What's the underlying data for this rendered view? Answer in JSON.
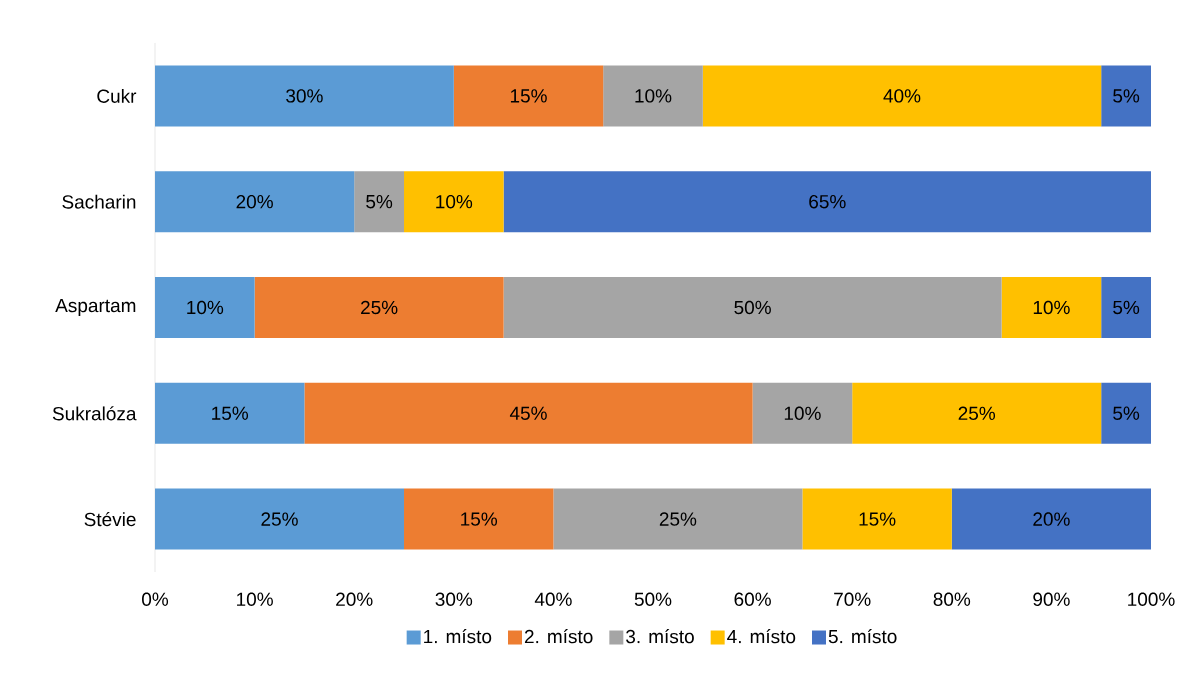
{
  "chart_data": {
    "type": "bar",
    "orientation": "horizontal",
    "stacked": true,
    "categories": [
      "Cukr",
      "Sacharin",
      "Aspartam",
      "Sukralóza",
      "Stévie"
    ],
    "series": [
      {
        "name": "1. místo",
        "color": "#5b9bd5",
        "values": [
          30,
          20,
          10,
          15,
          25
        ],
        "value_labels": [
          "30%",
          "20%",
          "10%",
          "15%",
          "25%"
        ]
      },
      {
        "name": "2. místo",
        "color": "#ed7d31",
        "values": [
          15,
          0,
          25,
          45,
          15
        ],
        "value_labels": [
          "15%",
          null,
          "25%",
          "45%",
          "15%"
        ]
      },
      {
        "name": "3. místo",
        "color": "#a5a5a5",
        "values": [
          10,
          5,
          50,
          10,
          25
        ],
        "value_labels": [
          "10%",
          "5%",
          "50%",
          "10%",
          "25%"
        ]
      },
      {
        "name": "4. místo",
        "color": "#ffc000",
        "values": [
          40,
          10,
          10,
          25,
          15
        ],
        "value_labels": [
          "40%",
          "10%",
          "10%",
          "25%",
          "15%"
        ]
      },
      {
        "name": "5. místo",
        "color": "#4472c4",
        "values": [
          5,
          65,
          5,
          5,
          20
        ],
        "value_labels": [
          "5%",
          "65%",
          "5%",
          "5%",
          "20%"
        ]
      }
    ],
    "xlim": [
      0,
      100
    ],
    "xticks": [
      {
        "value": 0,
        "label": "0%"
      },
      {
        "value": 10,
        "label": "10%"
      },
      {
        "value": 20,
        "label": "20%"
      },
      {
        "value": 30,
        "label": "30%"
      },
      {
        "value": 40,
        "label": "40%"
      },
      {
        "value": 50,
        "label": "50%"
      },
      {
        "value": 60,
        "label": "60%"
      },
      {
        "value": 70,
        "label": "70%"
      },
      {
        "value": 80,
        "label": "80%"
      },
      {
        "value": 90,
        "label": "90%"
      },
      {
        "value": 100,
        "label": "100%"
      }
    ],
    "legend": "bottom"
  }
}
